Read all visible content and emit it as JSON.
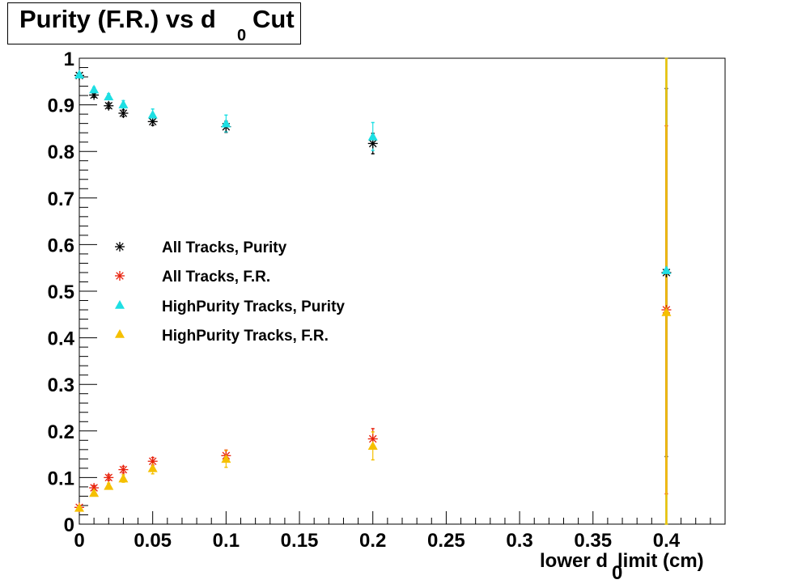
{
  "title": {
    "main": "Purity (F.R.) vs d",
    "subscript": "0",
    "suffix": "Cut"
  },
  "chart_data": {
    "type": "scatter",
    "xlabel": {
      "pre": "lower d",
      "sub": "0",
      "post": " limit (cm)"
    },
    "ylabel": "",
    "xlim": [
      0,
      0.44
    ],
    "ylim": [
      0,
      1
    ],
    "x_ticks": [
      "0",
      "0.05",
      "0.1",
      "0.15",
      "0.2",
      "0.25",
      "0.3",
      "0.35",
      "0.4"
    ],
    "y_ticks": [
      "0",
      "0.1",
      "0.2",
      "0.3",
      "0.4",
      "0.5",
      "0.6",
      "0.7",
      "0.8",
      "0.9",
      "1"
    ],
    "legend_position": "middle-left",
    "series": [
      {
        "name": "All Tracks, Purity",
        "marker": "star",
        "color": "#000000",
        "x": [
          0,
          0.01,
          0.02,
          0.03,
          0.05,
          0.1,
          0.2,
          0.4
        ],
        "y": [
          0.963,
          0.921,
          0.898,
          0.882,
          0.864,
          0.853,
          0.817,
          0.54
        ],
        "err": [
          0.004,
          0.005,
          0.006,
          0.007,
          0.008,
          0.012,
          0.022,
          0.395
        ]
      },
      {
        "name": "All Tracks, F.R.",
        "marker": "star",
        "color": "#e8210c",
        "x": [
          0,
          0.01,
          0.02,
          0.03,
          0.05,
          0.1,
          0.2,
          0.4
        ],
        "y": [
          0.036,
          0.078,
          0.1,
          0.117,
          0.135,
          0.147,
          0.183,
          0.46
        ],
        "err": [
          0.004,
          0.005,
          0.006,
          0.007,
          0.008,
          0.012,
          0.022,
          0.395
        ]
      },
      {
        "name": "HighPurity Tracks, Purity",
        "marker": "triangle",
        "color": "#1edfe3",
        "x": [
          0,
          0.01,
          0.02,
          0.03,
          0.05,
          0.1,
          0.2,
          0.4
        ],
        "y": [
          0.965,
          0.933,
          0.918,
          0.901,
          0.879,
          0.86,
          0.832,
          0.545
        ],
        "err": [
          0.004,
          0.005,
          0.006,
          0.008,
          0.012,
          0.018,
          0.03,
          0.56
        ]
      },
      {
        "name": "HighPurity Tracks, F.R.",
        "marker": "triangle",
        "color": "#f5c000",
        "x": [
          0,
          0.01,
          0.02,
          0.03,
          0.05,
          0.1,
          0.2,
          0.4
        ],
        "y": [
          0.035,
          0.067,
          0.082,
          0.098,
          0.12,
          0.14,
          0.168,
          0.455
        ],
        "err": [
          0.004,
          0.005,
          0.006,
          0.008,
          0.012,
          0.018,
          0.03,
          0.56
        ]
      }
    ]
  }
}
